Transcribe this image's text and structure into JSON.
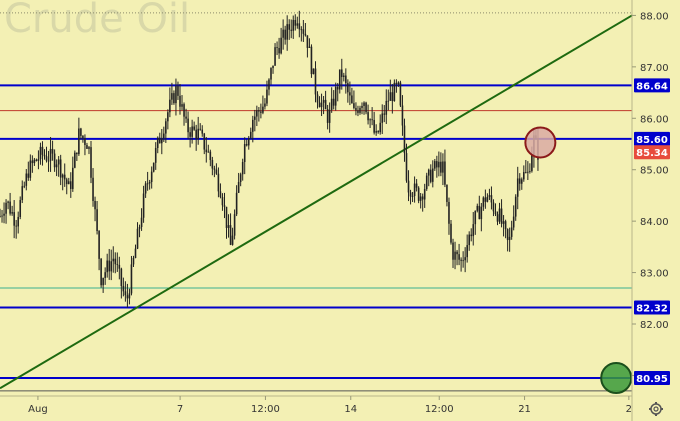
{
  "chart_data": {
    "type": "candlestick",
    "title": "Crude Oil",
    "ylim": [
      80.6,
      88.3
    ],
    "y_ticks": [
      "88.00",
      "87.00",
      "86.00",
      "85.00",
      "84.00",
      "83.00",
      "82.00",
      "81.00"
    ],
    "y_tick_values": [
      88,
      87,
      86,
      85,
      84,
      83,
      82,
      81
    ],
    "x_ticks": [
      "Aug",
      "7",
      "12:00",
      "14",
      "12:00",
      "21",
      "2"
    ],
    "x_tick_positions": [
      0.06,
      0.285,
      0.42,
      0.555,
      0.695,
      0.83,
      0.995
    ],
    "grid": false,
    "candle_color": "#222222",
    "price_path": [
      [
        0.0,
        84.1
      ],
      [
        0.01,
        84.4
      ],
      [
        0.025,
        84.0
      ],
      [
        0.045,
        85.0
      ],
      [
        0.065,
        85.3
      ],
      [
        0.09,
        85.2
      ],
      [
        0.11,
        84.6
      ],
      [
        0.125,
        85.7
      ],
      [
        0.14,
        85.5
      ],
      [
        0.16,
        82.9
      ],
      [
        0.18,
        83.3
      ],
      [
        0.2,
        82.4
      ],
      [
        0.215,
        83.5
      ],
      [
        0.23,
        84.6
      ],
      [
        0.25,
        85.5
      ],
      [
        0.265,
        86.1
      ],
      [
        0.28,
        86.6
      ],
      [
        0.295,
        85.8
      ],
      [
        0.315,
        85.7
      ],
      [
        0.33,
        85.3
      ],
      [
        0.35,
        84.6
      ],
      [
        0.365,
        83.5
      ],
      [
        0.385,
        85.4
      ],
      [
        0.4,
        86.0
      ],
      [
        0.42,
        86.3
      ],
      [
        0.435,
        87.3
      ],
      [
        0.455,
        87.7
      ],
      [
        0.47,
        88.0
      ],
      [
        0.485,
        87.6
      ],
      [
        0.5,
        86.5
      ],
      [
        0.52,
        86.0
      ],
      [
        0.54,
        86.9
      ],
      [
        0.56,
        86.1
      ],
      [
        0.575,
        86.4
      ],
      [
        0.595,
        85.6
      ],
      [
        0.615,
        86.4
      ],
      [
        0.63,
        86.6
      ],
      [
        0.645,
        84.7
      ],
      [
        0.665,
        84.5
      ],
      [
        0.685,
        85.0
      ],
      [
        0.7,
        85.1
      ],
      [
        0.715,
        83.4
      ],
      [
        0.73,
        83.2
      ],
      [
        0.75,
        84.0
      ],
      [
        0.77,
        84.5
      ],
      [
        0.79,
        84.1
      ],
      [
        0.805,
        83.5
      ],
      [
        0.82,
        84.9
      ],
      [
        0.835,
        84.9
      ],
      [
        0.845,
        85.6
      ],
      [
        0.852,
        85.3
      ]
    ],
    "level_lines": [
      {
        "value": 86.64,
        "color": "#0000cc",
        "tag": true,
        "tag_color": "#0000cc",
        "width": 2
      },
      {
        "value": 85.6,
        "color": "#0000cc",
        "tag": true,
        "tag_color": "#0000cc",
        "width": 2
      },
      {
        "value": 82.32,
        "color": "#0000cc",
        "tag": true,
        "tag_color": "#0000cc",
        "width": 2
      },
      {
        "value": 80.95,
        "color": "#0000cc",
        "tag": true,
        "tag_color": "#0000cc",
        "width": 2
      },
      {
        "value": 86.15,
        "color": "#c0392b",
        "tag": false,
        "width": 1
      },
      {
        "value": 82.7,
        "color": "#3bb08f",
        "tag": false,
        "width": 1
      },
      {
        "value": 80.7,
        "color": "#555555",
        "tag": false,
        "width": 1
      },
      {
        "value": 88.05,
        "color": "#8a8a6a",
        "tag": false,
        "width": 1,
        "dashed": true
      }
    ],
    "last_price": {
      "value": 85.34,
      "tag_color": "#e74c3c"
    },
    "trendline": {
      "x1": 0.0,
      "y1": 80.75,
      "x2": 1.0,
      "y2": 88.0,
      "color": "#1e6a10"
    },
    "markers": [
      {
        "x": 0.855,
        "y": 85.53,
        "fill": "#d9aaa3",
        "stroke": "#8b1a1a"
      },
      {
        "x": 0.975,
        "y": 80.95,
        "fill": "#3a9a3a",
        "stroke": "#1b4f1b"
      }
    ],
    "colors": {
      "background": "#f3f0b4",
      "axis_bg": "#f3f0b4"
    },
    "settings_icon": "gear-icon"
  }
}
